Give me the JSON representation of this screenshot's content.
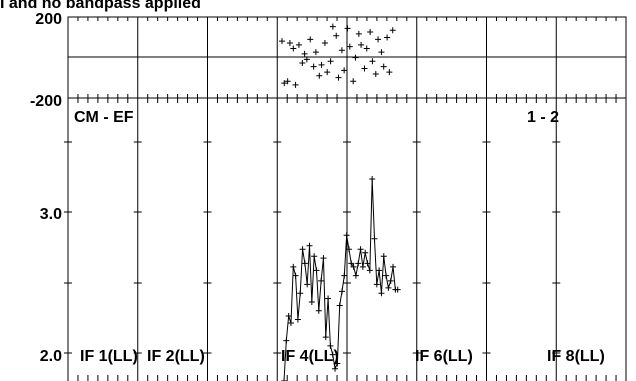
{
  "title_fragment": "I and no bandpass applied",
  "panel_label_left": "CM - EF",
  "panel_label_right": "1 - 2",
  "if_labels": [
    "IF 1(LL)",
    "IF 2(LL)",
    "IF 4(LL)",
    "IF 6(LL)",
    "IF 8(LL)"
  ],
  "chart_data": [
    {
      "type": "scatter",
      "name": "phase",
      "ytick_labels": [
        "200",
        "-200"
      ],
      "ylim": [
        -200,
        200
      ],
      "x": [
        0.5,
        0.52,
        0.55,
        0.57,
        0.6,
        0.62,
        0.65,
        0.68,
        0.7,
        0.72,
        0.75,
        0.78,
        0.8,
        0.83,
        0.85,
        0.88,
        0.9,
        0.93,
        0.95,
        0.98,
        1.0,
        1.03,
        1.05,
        1.08,
        1.1,
        1.13,
        1.15,
        1.18,
        1.2,
        1.23,
        1.25,
        1.28,
        1.3,
        1.33,
        1.35,
        1.38,
        1.4,
        1.43,
        1.45,
        1.48
      ],
      "y": [
        80,
        -150,
        -140,
        70,
        40,
        -160,
        60,
        -40,
        10,
        -20,
        90,
        -60,
        20,
        -110,
        -50,
        70,
        -90,
        -30,
        160,
        110,
        -120,
        30,
        -80,
        150,
        50,
        -140,
        -10,
        120,
        60,
        -70,
        40,
        130,
        -30,
        -100,
        90,
        20,
        -60,
        100,
        -90,
        140
      ]
    },
    {
      "type": "line",
      "name": "amplitude",
      "ytick_labels": [
        "3.0",
        "2.0"
      ],
      "ylim": [
        1.95,
        3.55
      ],
      "x": [
        0.5,
        0.52,
        0.54,
        0.56,
        0.58,
        0.6,
        0.62,
        0.64,
        0.66,
        0.68,
        0.7,
        0.72,
        0.74,
        0.76,
        0.78,
        0.8,
        0.82,
        0.84,
        0.86,
        0.88,
        0.9,
        0.92,
        0.94,
        0.96,
        0.98,
        1.0,
        1.02,
        1.04,
        1.06,
        1.08,
        1.1,
        1.12,
        1.14,
        1.16,
        1.18,
        1.2,
        1.22,
        1.24,
        1.26,
        1.28,
        1.3,
        1.32,
        1.34,
        1.36,
        1.38,
        1.4,
        1.42,
        1.44,
        1.46,
        1.48
      ],
      "y": [
        1.95,
        2.18,
        2.32,
        2.28,
        2.6,
        2.55,
        2.3,
        2.45,
        2.7,
        2.62,
        2.5,
        2.72,
        2.4,
        2.66,
        2.58,
        2.35,
        2.52,
        2.65,
        2.2,
        2.42,
        2.15,
        2.1,
        2.02,
        2.05,
        2.38,
        2.46,
        2.55,
        2.78,
        2.7,
        2.62,
        2.6,
        2.55,
        2.62,
        2.7,
        2.6,
        2.68,
        2.62,
        2.58,
        3.1,
        2.76,
        2.5,
        2.58,
        2.45,
        2.66,
        2.55,
        2.48,
        2.52,
        2.6,
        2.47,
        2.47
      ]
    }
  ]
}
